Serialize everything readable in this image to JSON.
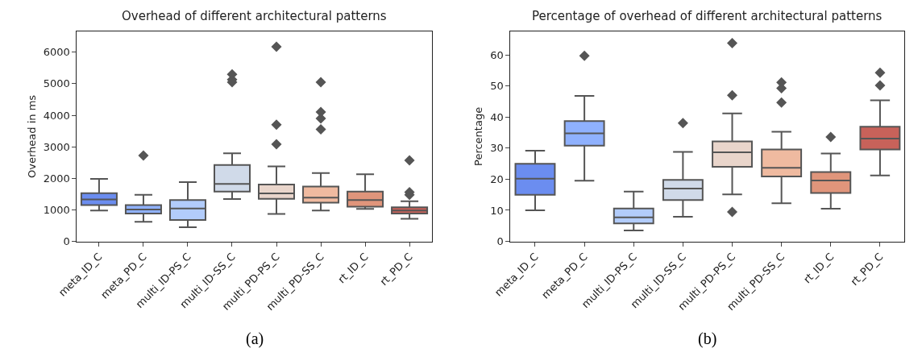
{
  "chart_data": [
    {
      "type": "box",
      "title": "Overhead of different architectural patterns",
      "ylabel": "Overhead in ms",
      "categories": [
        "meta_ID_C",
        "meta_PD_C",
        "multi_ID-PS_C",
        "multi_ID-SS_C",
        "multi_PD-PS_C",
        "multi_PD-SS_C",
        "rt_ID_C",
        "rt_PD_C"
      ],
      "colors": [
        "#6b8df0",
        "#8fb1fe",
        "#b2ccfb",
        "#d0dae9",
        "#e9d5cb",
        "#efbaa0",
        "#e0957b",
        "#c8625a"
      ],
      "boxes": [
        {
          "low": 980,
          "q1": 1150,
          "median": 1330,
          "q3": 1530,
          "high": 1980
        },
        {
          "low": 620,
          "q1": 880,
          "median": 1010,
          "q3": 1150,
          "high": 1480,
          "outliers": [
            2720
          ]
        },
        {
          "low": 450,
          "q1": 680,
          "median": 1040,
          "q3": 1310,
          "high": 1880
        },
        {
          "low": 1340,
          "q1": 1580,
          "median": 1820,
          "q3": 2420,
          "high": 2790,
          "outliers": [
            5050,
            5130,
            5300
          ]
        },
        {
          "low": 870,
          "q1": 1350,
          "median": 1520,
          "q3": 1800,
          "high": 2380,
          "outliers": [
            3080,
            3700,
            6170
          ]
        },
        {
          "low": 980,
          "q1": 1230,
          "median": 1390,
          "q3": 1740,
          "high": 2170,
          "outliers": [
            3550,
            3900,
            4100,
            5050
          ]
        },
        {
          "low": 1030,
          "q1": 1100,
          "median": 1310,
          "q3": 1580,
          "high": 2130
        },
        {
          "low": 720,
          "q1": 880,
          "median": 980,
          "q3": 1080,
          "high": 1270,
          "outliers": [
            1480,
            1560,
            2570
          ]
        }
      ],
      "marker": "diamond",
      "ylim": [
        0,
        6650
      ],
      "yticks": [
        0,
        1000,
        2000,
        3000,
        4000,
        5000,
        6000
      ],
      "annotations": [
        "(a)"
      ]
    },
    {
      "type": "box",
      "title": "Percentage of overhead of different architectural patterns",
      "ylabel": "Percentage",
      "categories": [
        "meta_ID_C",
        "meta_PD_C",
        "multi_ID-PS_C",
        "multi_ID-SS_C",
        "multi_PD-PS_C",
        "multi_PD-SS_C",
        "rt_ID_C",
        "rt_PD_C"
      ],
      "colors": [
        "#6b8df0",
        "#8fb1fe",
        "#b2ccfb",
        "#d0dae9",
        "#e9d5cb",
        "#efbaa0",
        "#e0957b",
        "#c8625a"
      ],
      "boxes": [
        {
          "low": 10,
          "q1": 15,
          "median": 20.2,
          "q3": 25,
          "high": 29.2
        },
        {
          "low": 19.5,
          "q1": 30.8,
          "median": 34.8,
          "q3": 38.7,
          "high": 46.8,
          "outliers": [
            59.7
          ]
        },
        {
          "low": 3.5,
          "q1": 5.8,
          "median": 7.7,
          "q3": 10.6,
          "high": 16
        },
        {
          "low": 7.9,
          "q1": 13.3,
          "median": 17,
          "q3": 19.8,
          "high": 28.8,
          "outliers": [
            38.1
          ]
        },
        {
          "low": 15.1,
          "q1": 24,
          "median": 28.7,
          "q3": 32.2,
          "high": 41.2,
          "outliers": [
            9.5,
            47,
            63.8
          ]
        },
        {
          "low": 12.3,
          "q1": 20.9,
          "median": 23.7,
          "q3": 29.6,
          "high": 35.3,
          "outliers": [
            44.7,
            49.3,
            51.2
          ]
        },
        {
          "low": 10.5,
          "q1": 15.6,
          "median": 19.6,
          "q3": 22.3,
          "high": 28.3,
          "outliers": [
            33.6
          ]
        },
        {
          "low": 21.2,
          "q1": 29.6,
          "median": 33.1,
          "q3": 36.9,
          "high": 45.4,
          "outliers": [
            50.2,
            54.3
          ]
        }
      ],
      "marker": "diamond",
      "ylim": [
        0,
        67.5
      ],
      "yticks": [
        0,
        10,
        20,
        30,
        40,
        50,
        60
      ],
      "annotations": [
        "(b)"
      ]
    }
  ]
}
